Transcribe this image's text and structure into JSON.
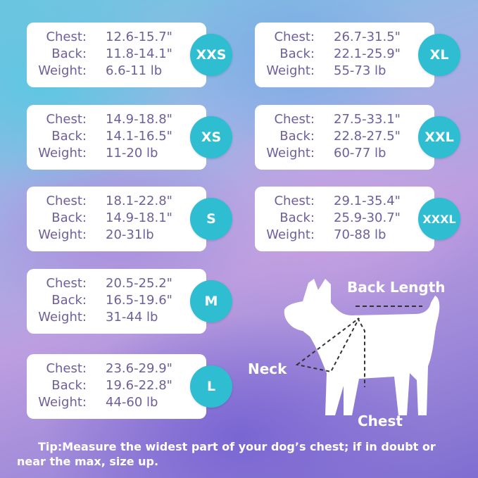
{
  "labels": {
    "chest": "Chest:",
    "back": "Back:",
    "weight": "Weight:"
  },
  "sizes": [
    {
      "size": "XXS",
      "chest": "12.6-15.7\"",
      "back": "11.8-14.1\"",
      "weight": "6.6-11 lb"
    },
    {
      "size": "XS",
      "chest": "14.9-18.8\"",
      "back": "14.1-16.5\"",
      "weight": "11-20 lb"
    },
    {
      "size": "S",
      "chest": "18.1-22.8\"",
      "back": "14.9-18.1\"",
      "weight": "20-31lb"
    },
    {
      "size": "M",
      "chest": "20.5-25.2\"",
      "back": "16.5-19.6\"",
      "weight": "31-44 lb"
    },
    {
      "size": "L",
      "chest": "23.6-29.9\"",
      "back": "19.6-22.8\"",
      "weight": "44-60 lb"
    },
    {
      "size": "XL",
      "chest": "26.7-31.5\"",
      "back": "22.1-25.9\"",
      "weight": "55-73 lb"
    },
    {
      "size": "XXL",
      "chest": "27.5-33.1\"",
      "back": "22.8-27.5\"",
      "weight": "60-77 lb"
    },
    {
      "size": "XXXL",
      "chest": "29.1-35.4\"",
      "back": "25.9-30.7\"",
      "weight": "70-88 lb"
    }
  ],
  "diagram": {
    "back_length": "Back Length",
    "neck": "Neck",
    "chest": "Chest"
  },
  "tip": "Tip:Measure the widest part of your dog’s chest; if in doubt or near the max, size up.",
  "colors": {
    "badge": "#2fbdd2",
    "text": "#6e5f9c",
    "card": "#ffffff"
  }
}
